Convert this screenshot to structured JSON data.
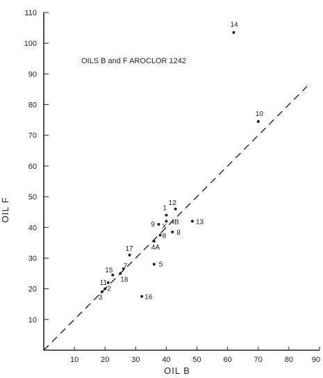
{
  "chart_data": {
    "type": "scatter",
    "title": "OILS B and F AROCLOR 1242",
    "xlabel": "OIL B",
    "ylabel": "OIL F",
    "xlim": [
      0,
      90
    ],
    "ylim": [
      0,
      110
    ],
    "xticks": [
      "10",
      "20",
      "30",
      "40",
      "50",
      "60",
      "70",
      "80",
      "90"
    ],
    "yticks": [
      "10",
      "20",
      "30",
      "40",
      "50",
      "60",
      "70",
      "80",
      "90",
      "100",
      "110"
    ],
    "grid": false,
    "reference_line": {
      "style": "dashed",
      "from": [
        0,
        0
      ],
      "to": [
        86,
        86
      ]
    },
    "points": [
      {
        "label": "14",
        "x": 62,
        "y": 103.5
      },
      {
        "label": "10",
        "x": 70,
        "y": 74.5
      },
      {
        "label": "12",
        "x": 43,
        "y": 46
      },
      {
        "label": "1",
        "x": 40,
        "y": 44
      },
      {
        "label": "4B",
        "x": 40,
        "y": 42
      },
      {
        "label": "9",
        "x": 37.5,
        "y": 41
      },
      {
        "label": "13",
        "x": 48.5,
        "y": 42
      },
      {
        "label": "X",
        "x": 39.5,
        "y": 40.5
      },
      {
        "label": "8",
        "x": 38,
        "y": 37.5
      },
      {
        "label": "8",
        "x": 42,
        "y": 38.5
      },
      {
        "label": "4A",
        "x": 36,
        "y": 35.5
      },
      {
        "label": "17",
        "x": 28,
        "y": 31
      },
      {
        "label": "5",
        "x": 36,
        "y": 28
      },
      {
        "label": "7",
        "x": 26,
        "y": 26.5
      },
      {
        "label": "15",
        "x": 22.5,
        "y": 24.5
      },
      {
        "label": "18",
        "x": 25,
        "y": 25
      },
      {
        "label": "11",
        "x": 21,
        "y": 22
      },
      {
        "label": "2",
        "x": 20,
        "y": 20
      },
      {
        "label": "3",
        "x": 19,
        "y": 19
      },
      {
        "label": "16",
        "x": 32,
        "y": 17.5
      }
    ]
  }
}
